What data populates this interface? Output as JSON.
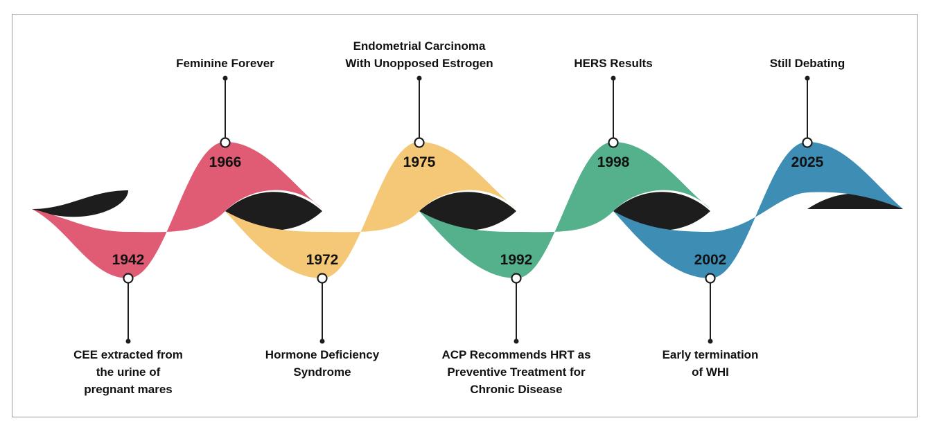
{
  "colors": {
    "red": "#df5c74",
    "yellow": "#f5c877",
    "green": "#55b08c",
    "blue": "#3d8db5",
    "dark": "#1d1d1d"
  },
  "events": [
    {
      "year": "1942",
      "label": "CEE extracted from\nthe urine of\npregnant mares",
      "side": "bottom",
      "color": "red"
    },
    {
      "year": "1966",
      "label": "Feminine Forever",
      "side": "top",
      "color": "red"
    },
    {
      "year": "1972",
      "label": "Hormone Deficiency\nSyndrome",
      "side": "bottom",
      "color": "yellow"
    },
    {
      "year": "1975",
      "label": "Endometrial Carcinoma\nWith Unopposed Estrogen",
      "side": "top",
      "color": "yellow"
    },
    {
      "year": "1992",
      "label": "ACP Recommends HRT as\nPreventive Treatment for\nChronic Disease",
      "side": "bottom",
      "color": "green"
    },
    {
      "year": "1998",
      "label": "HERS Results",
      "side": "top",
      "color": "green"
    },
    {
      "year": "2002",
      "label": "Early termination\nof WHI",
      "side": "bottom",
      "color": "blue"
    },
    {
      "year": "2025",
      "label": "Still Debating",
      "side": "top",
      "color": "blue"
    }
  ]
}
